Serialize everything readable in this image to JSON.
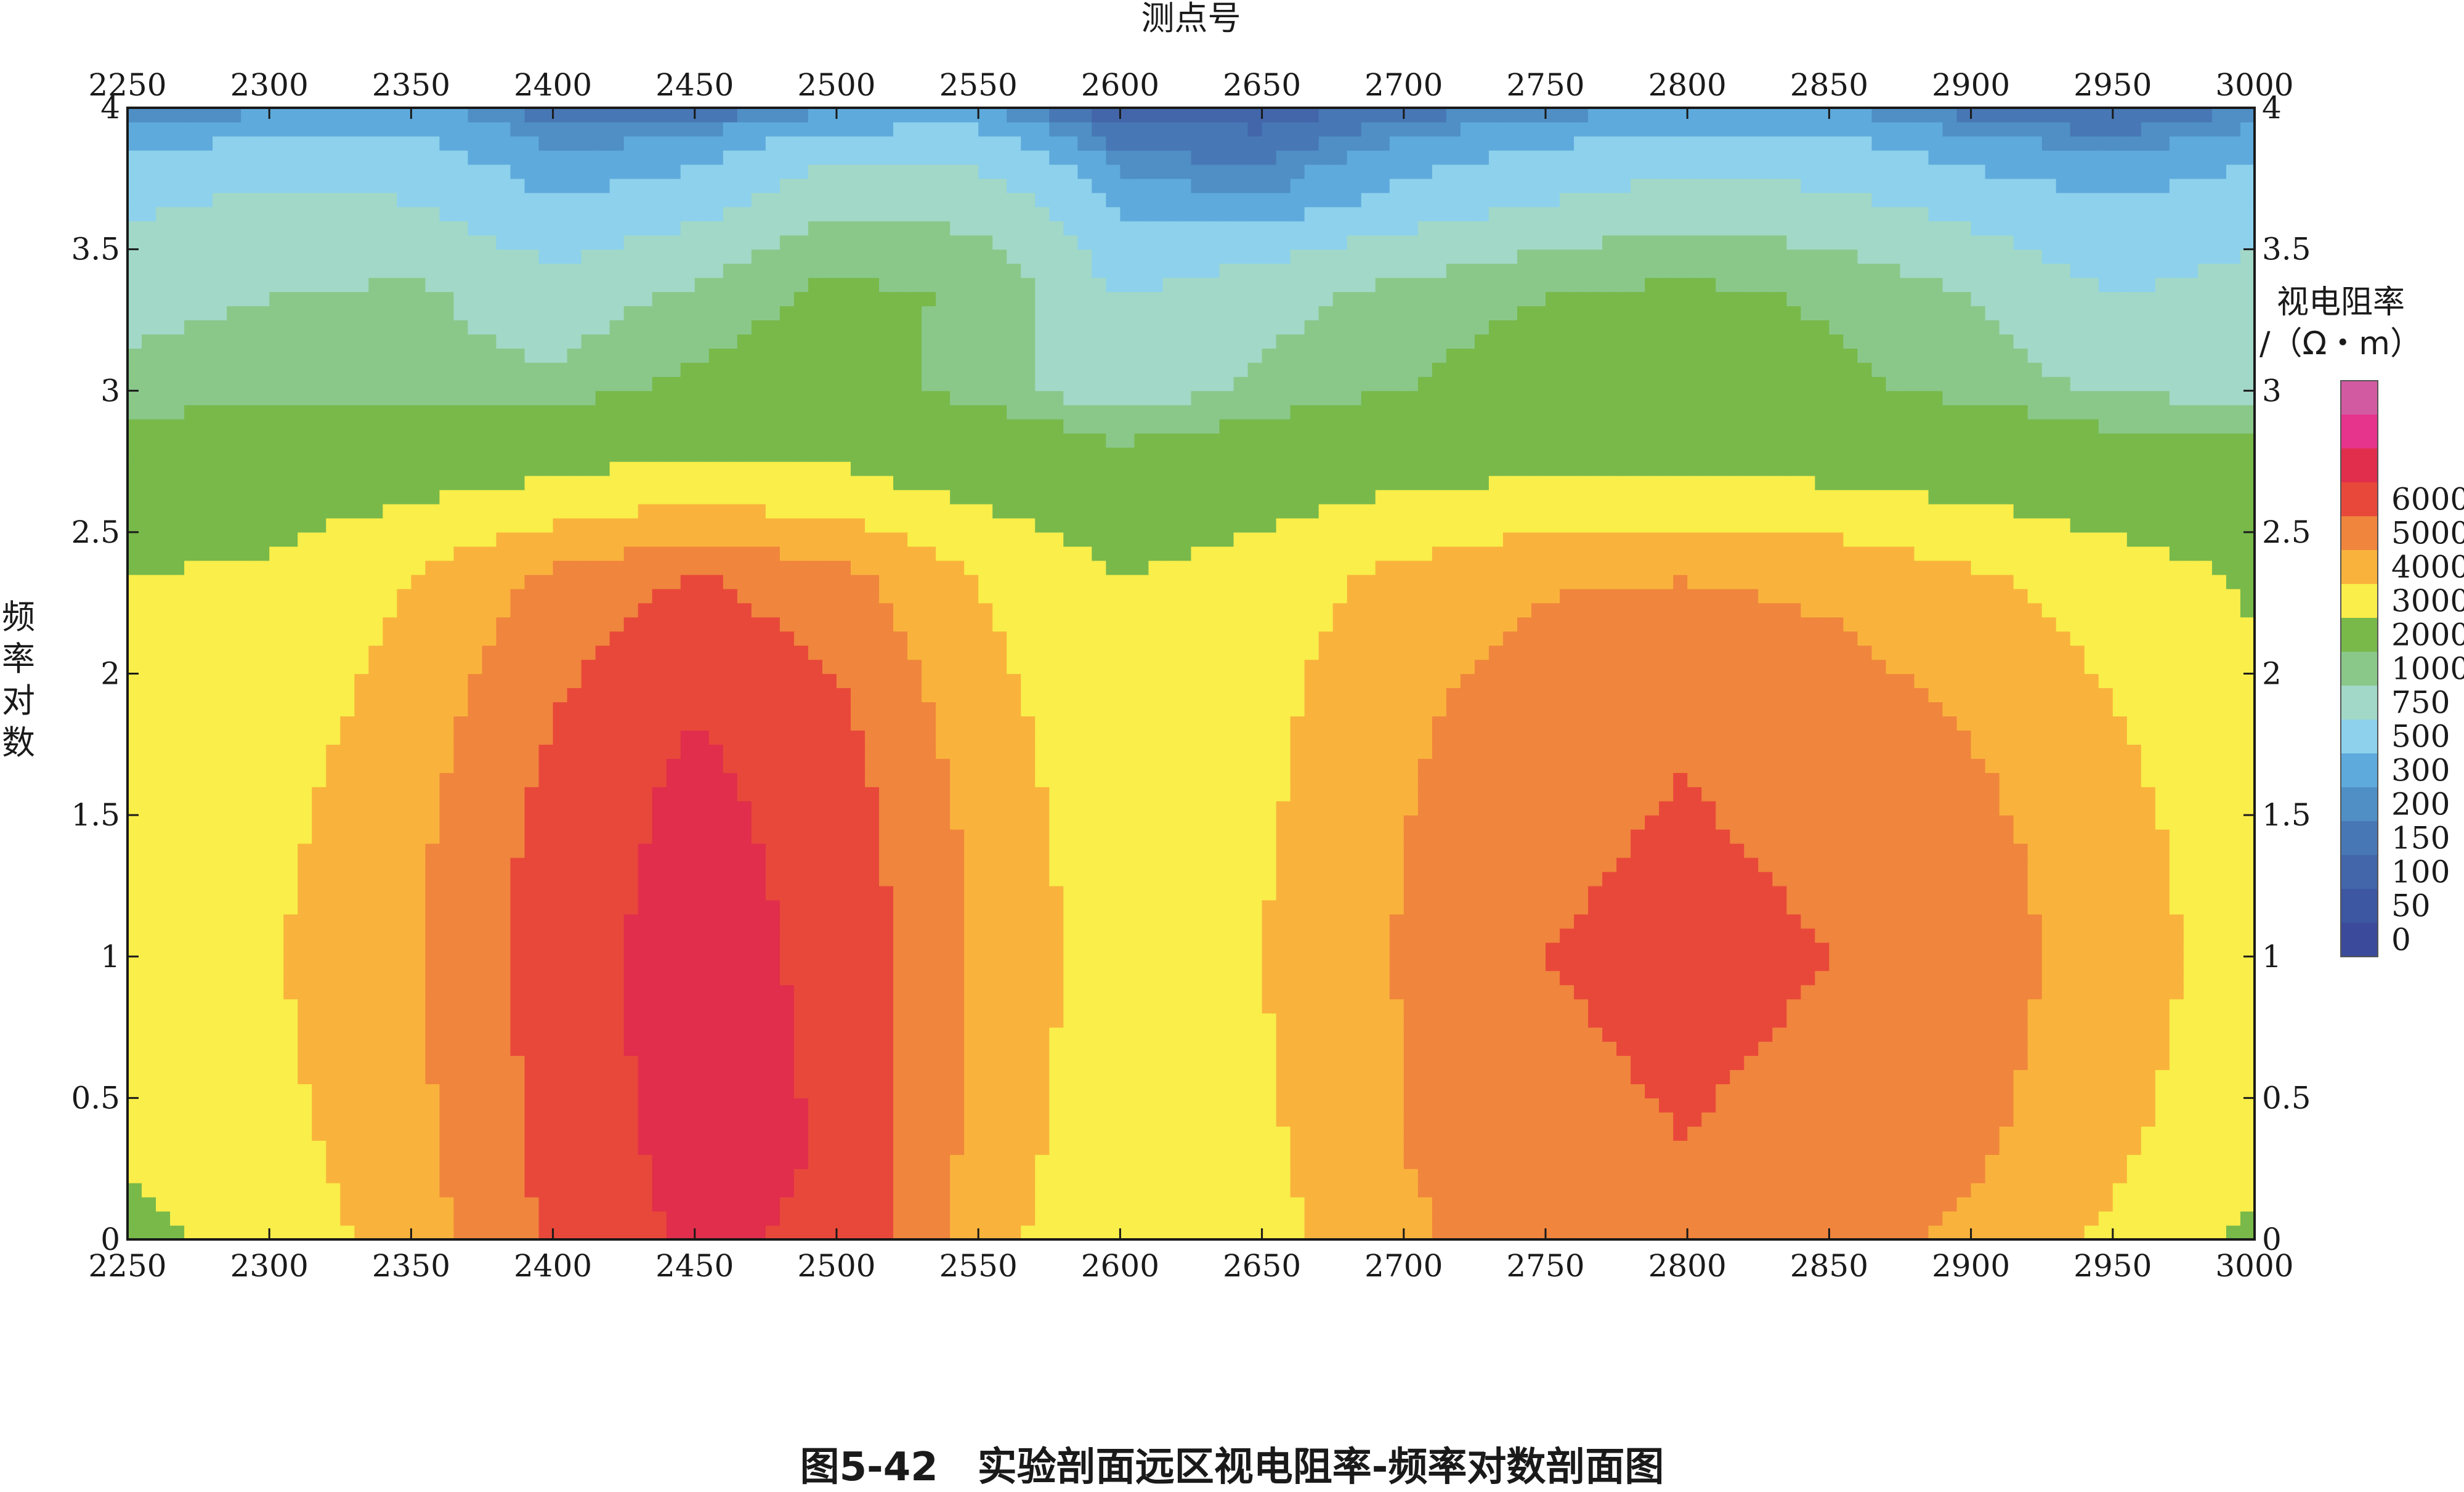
{
  "chart_data": {
    "type": "heatmap",
    "title": "",
    "caption": "图5-42　实验剖面远区视电阻率-频率对数剖面图",
    "xlabel": "测点号",
    "ylabel": "频率对数",
    "ylabel_chars": [
      "频",
      "率",
      "对",
      "数"
    ],
    "xlim": [
      2250,
      3000
    ],
    "ylim": [
      0,
      4
    ],
    "x_ticks": [
      2250,
      2300,
      2350,
      2400,
      2450,
      2500,
      2550,
      2600,
      2650,
      2700,
      2750,
      2800,
      2850,
      2900,
      2950,
      3000
    ],
    "y_ticks": [
      0,
      0.5,
      1,
      1.5,
      2,
      2.5,
      3,
      3.5,
      4
    ],
    "y_tick_labels": [
      "0",
      "0.5",
      "1",
      "1.5",
      "2",
      "2.5",
      "3",
      "3.5",
      "4"
    ],
    "legend": {
      "title_line1": "视电阻率",
      "title_line2": "/（Ω・m）",
      "levels": [
        0,
        50,
        100,
        150,
        200,
        300,
        500,
        750,
        1000,
        2000,
        3000,
        4000,
        5000,
        6000
      ],
      "colors": [
        "#3b4a9a",
        "#3d57a2",
        "#4366aa",
        "#4877b5",
        "#4f8fc5",
        "#5eaadc",
        "#8dd1ec",
        "#a2d8c7",
        "#8ac88a",
        "#78b94a",
        "#f9ee4a",
        "#f9b33c",
        "#f0853d",
        "#e8483a",
        "#e12e4c",
        "#e6338c",
        "#d25aa0"
      ]
    },
    "z": [
      [
        1800,
        2300,
        3500,
        5200,
        6200,
        5800,
        3500,
        2000,
        2600,
        3800,
        4600,
        4700,
        4300,
        3800,
        2800,
        1800
      ],
      [
        2100,
        2600,
        3700,
        5300,
        6400,
        5900,
        3700,
        2200,
        2800,
        4000,
        4800,
        5000,
        4700,
        4200,
        3200,
        2200
      ],
      [
        2300,
        2800,
        3800,
        5400,
        6500,
        5800,
        3800,
        2300,
        2900,
        4000,
        4900,
        5100,
        4900,
        4400,
        3400,
        2400
      ],
      [
        2400,
        2900,
        3900,
        5500,
        6500,
        5700,
        3900,
        2400,
        3000,
        4100,
        5000,
        5200,
        5000,
        4500,
        3500,
        2500
      ],
      [
        2300,
        2800,
        3800,
        5400,
        6400,
        5600,
        3800,
        2300,
        2900,
        4000,
        4900,
        5100,
        4900,
        4400,
        3400,
        2400
      ],
      [
        2200,
        2600,
        3600,
        5200,
        6200,
        5400,
        3600,
        2200,
        2800,
        3900,
        4800,
        5000,
        4700,
        4100,
        3200,
        2300
      ],
      [
        2100,
        2400,
        3300,
        4800,
        5800,
        5000,
        3300,
        2100,
        2700,
        3700,
        4400,
        4600,
        4300,
        3700,
        2900,
        2100
      ],
      [
        2000,
        2200,
        3000,
        4300,
        5100,
        4400,
        3000,
        2000,
        2500,
        3300,
        3900,
        4000,
        3800,
        3200,
        2500,
        1900
      ],
      [
        1400,
        1500,
        1700,
        2100,
        2400,
        2200,
        1700,
        1300,
        1500,
        1900,
        2100,
        2100,
        2000,
        1700,
        1400,
        1300
      ],
      [
        850,
        900,
        850,
        800,
        1100,
        1200,
        850,
        600,
        800,
        1000,
        1200,
        1300,
        1100,
        900,
        700,
        700
      ],
      [
        650,
        750,
        800,
        600,
        800,
        1100,
        950,
        500,
        650,
        850,
        1000,
        1100,
        950,
        750,
        500,
        600
      ],
      [
        450,
        550,
        500,
        300,
        400,
        700,
        650,
        250,
        200,
        350,
        500,
        600,
        550,
        400,
        300,
        400
      ],
      [
        150,
        180,
        220,
        120,
        100,
        180,
        200,
        60,
        70,
        120,
        160,
        200,
        200,
        120,
        90,
        150
      ]
    ],
    "y_grid_values": [
      0,
      0.33,
      0.67,
      1.0,
      1.33,
      1.67,
      2.0,
      2.33,
      2.67,
      3.0,
      3.33,
      3.67,
      4.0
    ],
    "grid": false,
    "legend_position": "right"
  }
}
